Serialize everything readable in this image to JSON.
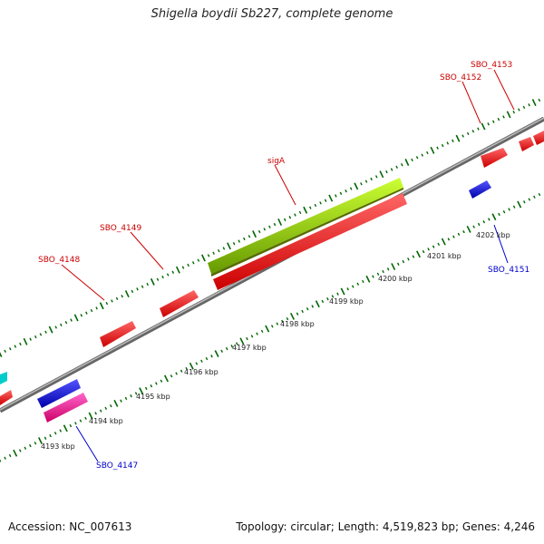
{
  "title": "Shigella boydii Sb227, complete genome",
  "footer": {
    "accession": "Accession: NC_007613",
    "topology": "Topology: circular; Length: 4,519,823 bp; Genes: 4,246"
  },
  "colors": {
    "forward_feature": "#ff0000",
    "reverse_feature": "#0000ff",
    "rna_feature": "#99cc00",
    "pink_feature": "#ff3399",
    "cyan_feature": "#00cccc",
    "forward_label": "#cc0000",
    "reverse_label": "#0000cc",
    "tick": "#006600",
    "backbone": "#888888"
  },
  "kbp_ticks": [
    "4193 kbp",
    "4194 kbp",
    "4195 kbp",
    "4196 kbp",
    "4197 kbp",
    "4198 kbp",
    "4199 kbp",
    "4200 kbp",
    "4201 kbp",
    "4202 kbp"
  ],
  "gene_labels": [
    {
      "text": "SBO_4148",
      "strand": "forward"
    },
    {
      "text": "SBO_4149",
      "strand": "forward"
    },
    {
      "text": "sigA",
      "strand": "forward"
    },
    {
      "text": "SBO_4152",
      "strand": "forward"
    },
    {
      "text": "SBO_4153",
      "strand": "forward"
    },
    {
      "text": "SBO_4151",
      "strand": "reverse"
    },
    {
      "text": "SBO_4147",
      "strand": "reverse"
    }
  ]
}
